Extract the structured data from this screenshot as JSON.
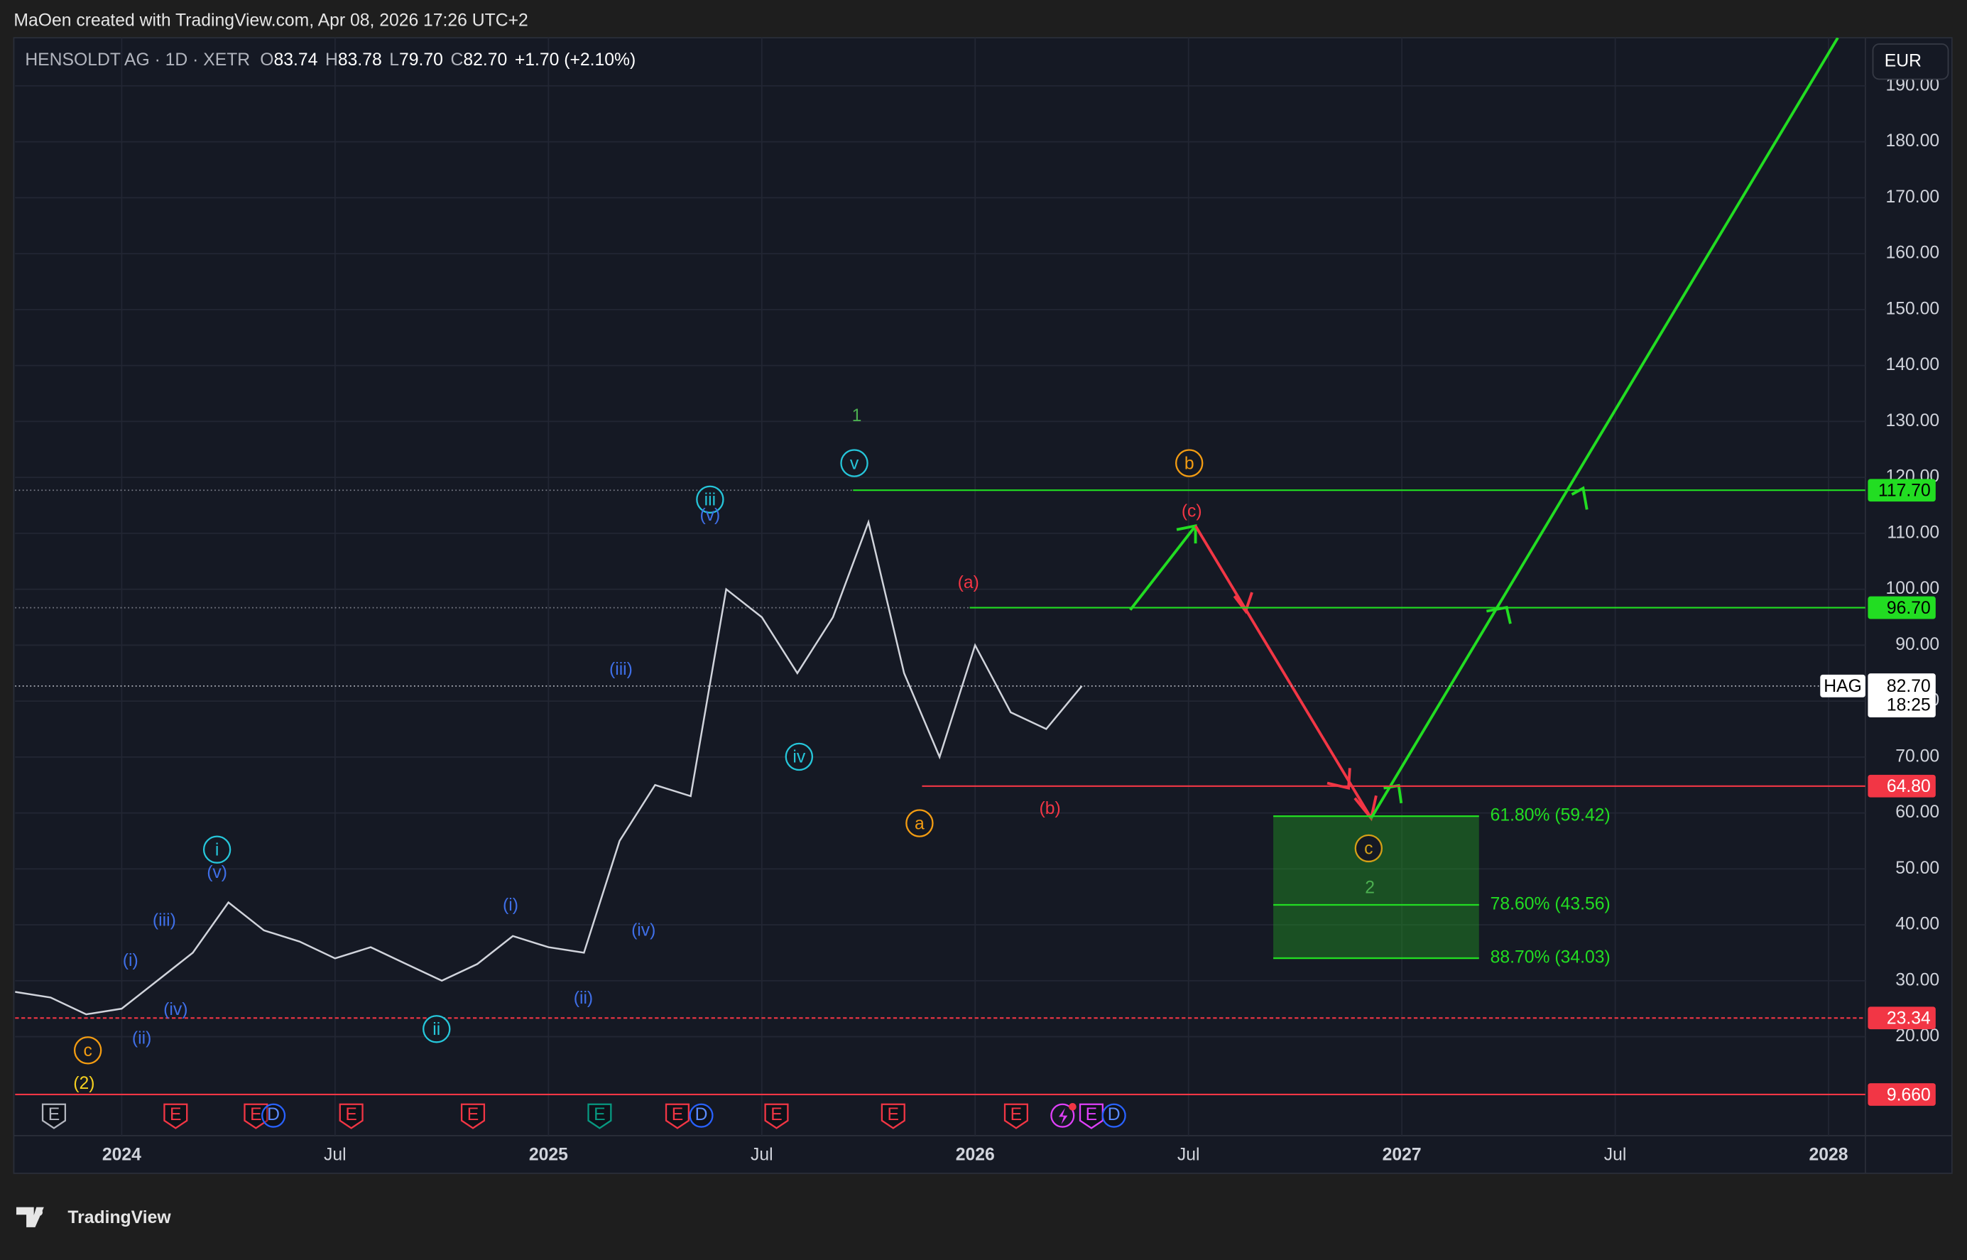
{
  "header": {
    "attribution": "MaOen created with TradingView.com, Apr 08, 2026 17:26 UTC+2",
    "symbol": "HENSOLDT AG · 1D · XETR",
    "ohlc": [
      {
        "label": "O",
        "value": "83.74"
      },
      {
        "label": "H",
        "value": "83.78"
      },
      {
        "label": "L",
        "value": "79.70"
      },
      {
        "label": "C",
        "value": "82.70"
      }
    ],
    "change": "+1.70 (+2.10%)",
    "currency": "EUR"
  },
  "chart_data": {
    "type": "line",
    "color": "#d1d4dc",
    "x": [
      "2023-10",
      "2023-11",
      "2023-12",
      "2024-01",
      "2024-02",
      "2024-03",
      "2024-04",
      "2024-05",
      "2024-06",
      "2024-07",
      "2024-08",
      "2024-09",
      "2024-10",
      "2024-11",
      "2024-12",
      "2025-01",
      "2025-02",
      "2025-03",
      "2025-04",
      "2025-05",
      "2025-06",
      "2025-07",
      "2025-08",
      "2025-09",
      "2025-10",
      "2025-11",
      "2025-12",
      "2026-01",
      "2026-02",
      "2026-03",
      "2026-04"
    ],
    "values": [
      28,
      27,
      24,
      25,
      30,
      35,
      44,
      39,
      37,
      34,
      36,
      33,
      30,
      33,
      38,
      36,
      35,
      55,
      65,
      63,
      100,
      95,
      85,
      95,
      112,
      85,
      70,
      90,
      78,
      75,
      82.7
    ],
    "xlim": [
      "2023-10",
      "2028-02"
    ],
    "xticks": [
      {
        "value": "2024-01",
        "label": "2024"
      },
      {
        "value": "2024-07",
        "label": "Jul"
      },
      {
        "value": "2025-01",
        "label": "2025"
      },
      {
        "value": "2025-07",
        "label": "Jul"
      },
      {
        "value": "2026-01",
        "label": "2026"
      },
      {
        "value": "2026-07",
        "label": "Jul"
      },
      {
        "value": "2027-01",
        "label": "2027"
      },
      {
        "value": "2027-07",
        "label": "Jul"
      },
      {
        "value": "2028-01",
        "label": "2028"
      }
    ],
    "ylim": [
      2.3,
      198.6
    ],
    "yticks": [
      {
        "value": 20,
        "label": "20.00"
      },
      {
        "value": 30,
        "label": "30.00"
      },
      {
        "value": 40,
        "label": "40.00"
      },
      {
        "value": 50,
        "label": "50.00"
      },
      {
        "value": 60,
        "label": "60.00"
      },
      {
        "value": 70,
        "label": "70.00"
      },
      {
        "value": 80,
        "label": "80.00"
      },
      {
        "value": 90,
        "label": "90.00"
      },
      {
        "value": 100,
        "label": "100.00"
      },
      {
        "value": 110,
        "label": "110.00"
      },
      {
        "value": 120,
        "label": "120.00"
      },
      {
        "value": 130,
        "label": "130.00"
      },
      {
        "value": 140,
        "label": "140.00"
      },
      {
        "value": 150,
        "label": "150.00"
      },
      {
        "value": 160,
        "label": "160.00"
      },
      {
        "value": 170,
        "label": "170.00"
      },
      {
        "value": 180,
        "label": "180.00"
      },
      {
        "value": 190,
        "label": "190.00"
      }
    ],
    "grid": true,
    "levels": [
      {
        "value": 117.7,
        "label": "117.70",
        "color": "#22dd22"
      },
      {
        "value": 96.7,
        "label": "96.70",
        "color": "#22dd22"
      },
      {
        "value": 64.8,
        "label": "64.80",
        "color": "#f23645"
      },
      {
        "value": 23.34,
        "label": "23.34",
        "color": "#f23645"
      },
      {
        "value": 9.66,
        "label": "9.660",
        "color": "#f23645"
      }
    ],
    "last_price": {
      "symbol": "HAG",
      "value": 82.7,
      "label": "82.70",
      "countdown": "18:25"
    },
    "fibonacci": [
      {
        "value": 59.42,
        "label": "61.80% (59.42)"
      },
      {
        "value": 43.56,
        "label": "78.60% (43.56)"
      },
      {
        "value": 34.03,
        "label": "88.70% (34.03)"
      }
    ],
    "fib_color": "#22dd22",
    "wave_labels": [
      "1",
      "v",
      "iii",
      "(v)",
      "b",
      "(c)",
      "(a)",
      "(b)",
      "a",
      "iv",
      "(iii)",
      "(iv)",
      "(i)",
      "(ii)",
      "ii",
      "i",
      "(v)",
      "(iii)",
      "(i)",
      "(iv)",
      "(ii)",
      "c",
      "(2)",
      "c",
      "2"
    ]
  },
  "events": {
    "earnings": "E",
    "dividend": "D"
  },
  "footer": {
    "brand": "TradingView"
  }
}
